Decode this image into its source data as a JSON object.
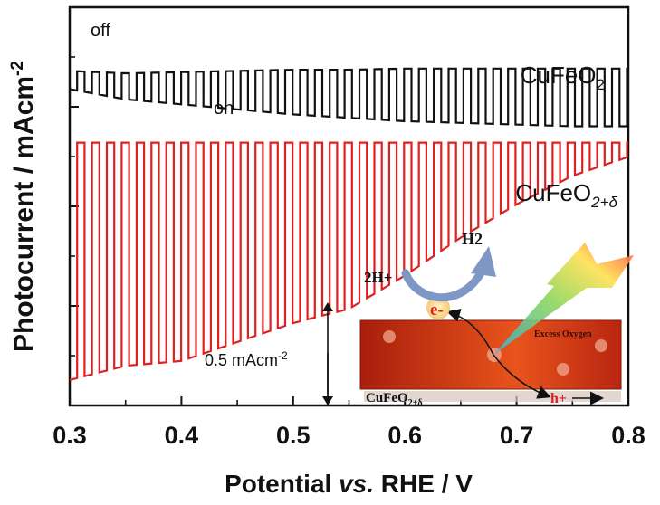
{
  "chart_data": {
    "type": "line",
    "xlabel_parts": [
      "Potential ",
      "vs.",
      " RHE / V"
    ],
    "ylabel": "Photocurrent / mAcm",
    "ylabel_sup": "-2",
    "xlim": [
      0.3,
      0.8
    ],
    "ylim": [
      0,
      1
    ],
    "x_ticks": [
      "0.3",
      "0.4",
      "0.5",
      "0.6",
      "0.7",
      "0.8"
    ],
    "y_ticks_visible": false,
    "grid": false,
    "chopping_period_V": 0.0133,
    "series": [
      {
        "name": "CuFeO2",
        "label_base": "CuFeO",
        "label_sub": "2",
        "color": "#111111",
        "x": [
          0.3,
          0.35,
          0.4,
          0.45,
          0.5,
          0.55,
          0.6,
          0.65,
          0.7,
          0.75,
          0.8
        ],
        "light_on": [
          0.32,
          0.3,
          0.31,
          0.32,
          0.33,
          0.33,
          0.34,
          0.34,
          0.34,
          0.34,
          0.34
        ],
        "light_off": [
          0.27,
          0.21,
          0.18,
          0.15,
          0.12,
          0.1,
          0.08,
          0.07,
          0.06,
          0.05,
          0.05
        ]
      },
      {
        "name": "CuFeO2+δ",
        "label_base": "CuFeO",
        "label_sub": "2+δ",
        "color": "#e02020",
        "x": [
          0.3,
          0.35,
          0.4,
          0.45,
          0.5,
          0.55,
          0.6,
          0.65,
          0.7,
          0.75,
          0.8
        ],
        "light_on": [
          0.52,
          0.52,
          0.52,
          0.52,
          0.52,
          0.52,
          0.52,
          0.52,
          0.52,
          0.52,
          0.52
        ],
        "light_off": [
          0.02,
          0.05,
          0.06,
          0.1,
          0.14,
          0.17,
          0.24,
          0.32,
          0.39,
          0.45,
          0.49
        ]
      }
    ],
    "annotations": {
      "off": "off",
      "on": "on",
      "scale_bar": "0.5 mAcm",
      "scale_bar_sup": "-2",
      "scale_bar_value": 0.5
    },
    "inset": {
      "h2_plus": "2H+",
      "h2": "H2",
      "electron": "e-",
      "hole": "h+",
      "excess_oxygen": "Excess Oxygen",
      "material_base": "CuFeO",
      "material_sub": "2+δ"
    },
    "colors": {
      "axis": "#111111",
      "cufeo2": "#111111",
      "cufeo2_delta": "#e02020",
      "film_dark": "#a81e0c",
      "film_light": "#e8541c",
      "arrow_blue": "#7f97c4"
    }
  }
}
